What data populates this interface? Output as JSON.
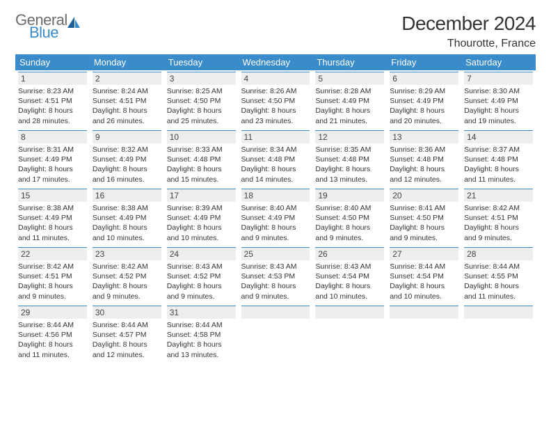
{
  "brand": {
    "general": "General",
    "blue": "Blue"
  },
  "title": "December 2024",
  "location": "Thourotte, France",
  "weekdays": [
    "Sunday",
    "Monday",
    "Tuesday",
    "Wednesday",
    "Thursday",
    "Friday",
    "Saturday"
  ],
  "colors": {
    "header_bg": "#3a8bc9",
    "header_text": "#ffffff",
    "daybar_bg": "#eeeeee",
    "daybar_border": "#3a8bc9",
    "logo_gray": "#6b6b6b",
    "logo_blue": "#3a8bc9",
    "page_bg": "#ffffff",
    "text": "#333333"
  },
  "days": [
    {
      "n": "1",
      "sr": "8:23 AM",
      "ss": "4:51 PM",
      "dh": "8",
      "dm": "28"
    },
    {
      "n": "2",
      "sr": "8:24 AM",
      "ss": "4:51 PM",
      "dh": "8",
      "dm": "26"
    },
    {
      "n": "3",
      "sr": "8:25 AM",
      "ss": "4:50 PM",
      "dh": "8",
      "dm": "25"
    },
    {
      "n": "4",
      "sr": "8:26 AM",
      "ss": "4:50 PM",
      "dh": "8",
      "dm": "23"
    },
    {
      "n": "5",
      "sr": "8:28 AM",
      "ss": "4:49 PM",
      "dh": "8",
      "dm": "21"
    },
    {
      "n": "6",
      "sr": "8:29 AM",
      "ss": "4:49 PM",
      "dh": "8",
      "dm": "20"
    },
    {
      "n": "7",
      "sr": "8:30 AM",
      "ss": "4:49 PM",
      "dh": "8",
      "dm": "19"
    },
    {
      "n": "8",
      "sr": "8:31 AM",
      "ss": "4:49 PM",
      "dh": "8",
      "dm": "17"
    },
    {
      "n": "9",
      "sr": "8:32 AM",
      "ss": "4:49 PM",
      "dh": "8",
      "dm": "16"
    },
    {
      "n": "10",
      "sr": "8:33 AM",
      "ss": "4:48 PM",
      "dh": "8",
      "dm": "15"
    },
    {
      "n": "11",
      "sr": "8:34 AM",
      "ss": "4:48 PM",
      "dh": "8",
      "dm": "14"
    },
    {
      "n": "12",
      "sr": "8:35 AM",
      "ss": "4:48 PM",
      "dh": "8",
      "dm": "13"
    },
    {
      "n": "13",
      "sr": "8:36 AM",
      "ss": "4:48 PM",
      "dh": "8",
      "dm": "12"
    },
    {
      "n": "14",
      "sr": "8:37 AM",
      "ss": "4:48 PM",
      "dh": "8",
      "dm": "11"
    },
    {
      "n": "15",
      "sr": "8:38 AM",
      "ss": "4:49 PM",
      "dh": "8",
      "dm": "11"
    },
    {
      "n": "16",
      "sr": "8:38 AM",
      "ss": "4:49 PM",
      "dh": "8",
      "dm": "10"
    },
    {
      "n": "17",
      "sr": "8:39 AM",
      "ss": "4:49 PM",
      "dh": "8",
      "dm": "10"
    },
    {
      "n": "18",
      "sr": "8:40 AM",
      "ss": "4:49 PM",
      "dh": "8",
      "dm": "9"
    },
    {
      "n": "19",
      "sr": "8:40 AM",
      "ss": "4:50 PM",
      "dh": "8",
      "dm": "9"
    },
    {
      "n": "20",
      "sr": "8:41 AM",
      "ss": "4:50 PM",
      "dh": "8",
      "dm": "9"
    },
    {
      "n": "21",
      "sr": "8:42 AM",
      "ss": "4:51 PM",
      "dh": "8",
      "dm": "9"
    },
    {
      "n": "22",
      "sr": "8:42 AM",
      "ss": "4:51 PM",
      "dh": "8",
      "dm": "9"
    },
    {
      "n": "23",
      "sr": "8:42 AM",
      "ss": "4:52 PM",
      "dh": "8",
      "dm": "9"
    },
    {
      "n": "24",
      "sr": "8:43 AM",
      "ss": "4:52 PM",
      "dh": "8",
      "dm": "9"
    },
    {
      "n": "25",
      "sr": "8:43 AM",
      "ss": "4:53 PM",
      "dh": "8",
      "dm": "9"
    },
    {
      "n": "26",
      "sr": "8:43 AM",
      "ss": "4:54 PM",
      "dh": "8",
      "dm": "10"
    },
    {
      "n": "27",
      "sr": "8:44 AM",
      "ss": "4:54 PM",
      "dh": "8",
      "dm": "10"
    },
    {
      "n": "28",
      "sr": "8:44 AM",
      "ss": "4:55 PM",
      "dh": "8",
      "dm": "11"
    },
    {
      "n": "29",
      "sr": "8:44 AM",
      "ss": "4:56 PM",
      "dh": "8",
      "dm": "11"
    },
    {
      "n": "30",
      "sr": "8:44 AM",
      "ss": "4:57 PM",
      "dh": "8",
      "dm": "12"
    },
    {
      "n": "31",
      "sr": "8:44 AM",
      "ss": "4:58 PM",
      "dh": "8",
      "dm": "13"
    }
  ],
  "labels": {
    "sunrise": "Sunrise: ",
    "sunset": "Sunset: ",
    "daylight1": "Daylight: ",
    "daylight2": " hours and ",
    "daylight3": " minutes."
  },
  "layout": {
    "start_offset": 0,
    "total_cells": 35
  }
}
